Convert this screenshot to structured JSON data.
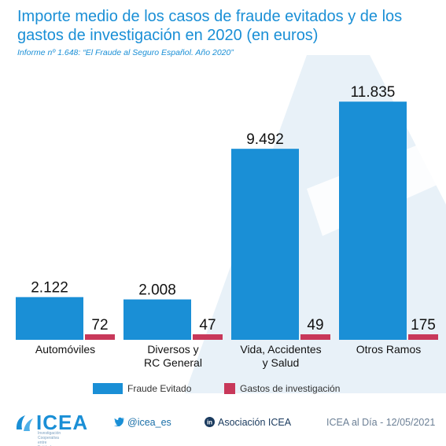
{
  "title": "Importe medio de los casos de fraude evitados y de los gastos de investigación en 2020 (en euros)",
  "subtitle": "Informe nº 1.648: “El Fraude al Seguro Español. Año 2020”",
  "chart_data": {
    "type": "bar",
    "title": "Importe medio de los casos de fraude evitados y de los gastos de investigación en 2020 (en euros)",
    "categories": [
      [
        "Automóviles"
      ],
      [
        "Diversos y",
        "RC General"
      ],
      [
        "Vida, Accidentes",
        "y Salud"
      ],
      [
        "Otros Ramos"
      ]
    ],
    "series": [
      {
        "name": "Fraude Evitado",
        "color": "#1a8fd6",
        "values": [
          2122,
          2008,
          9492,
          11835
        ],
        "labels": [
          "2.122",
          "2.008",
          "9.492",
          "11.835"
        ]
      },
      {
        "name": "Gastos de investigación",
        "color": "#c8385a",
        "values": [
          72,
          47,
          49,
          175
        ],
        "labels": [
          "72",
          "47",
          "49",
          "175"
        ]
      }
    ],
    "ylim": [
      0,
      12000
    ],
    "grid": false,
    "legend": "bottom"
  },
  "footer": {
    "brand": "ICEA",
    "brand_tagline": "Investigación Cooperativa entre Entidades Aseguradoras",
    "twitter": "@icea_es",
    "linkedin": "Asociación ICEA",
    "date": "ICEA al Día - 12/05/2021"
  },
  "colors": {
    "accent": "#1a8fd6",
    "expense": "#c8385a",
    "footer_text": "#1a6fa8"
  },
  "icons": {
    "twitter": "twitter-icon",
    "linkedin": "linkedin-icon",
    "logo": "icea-logo-icon"
  }
}
